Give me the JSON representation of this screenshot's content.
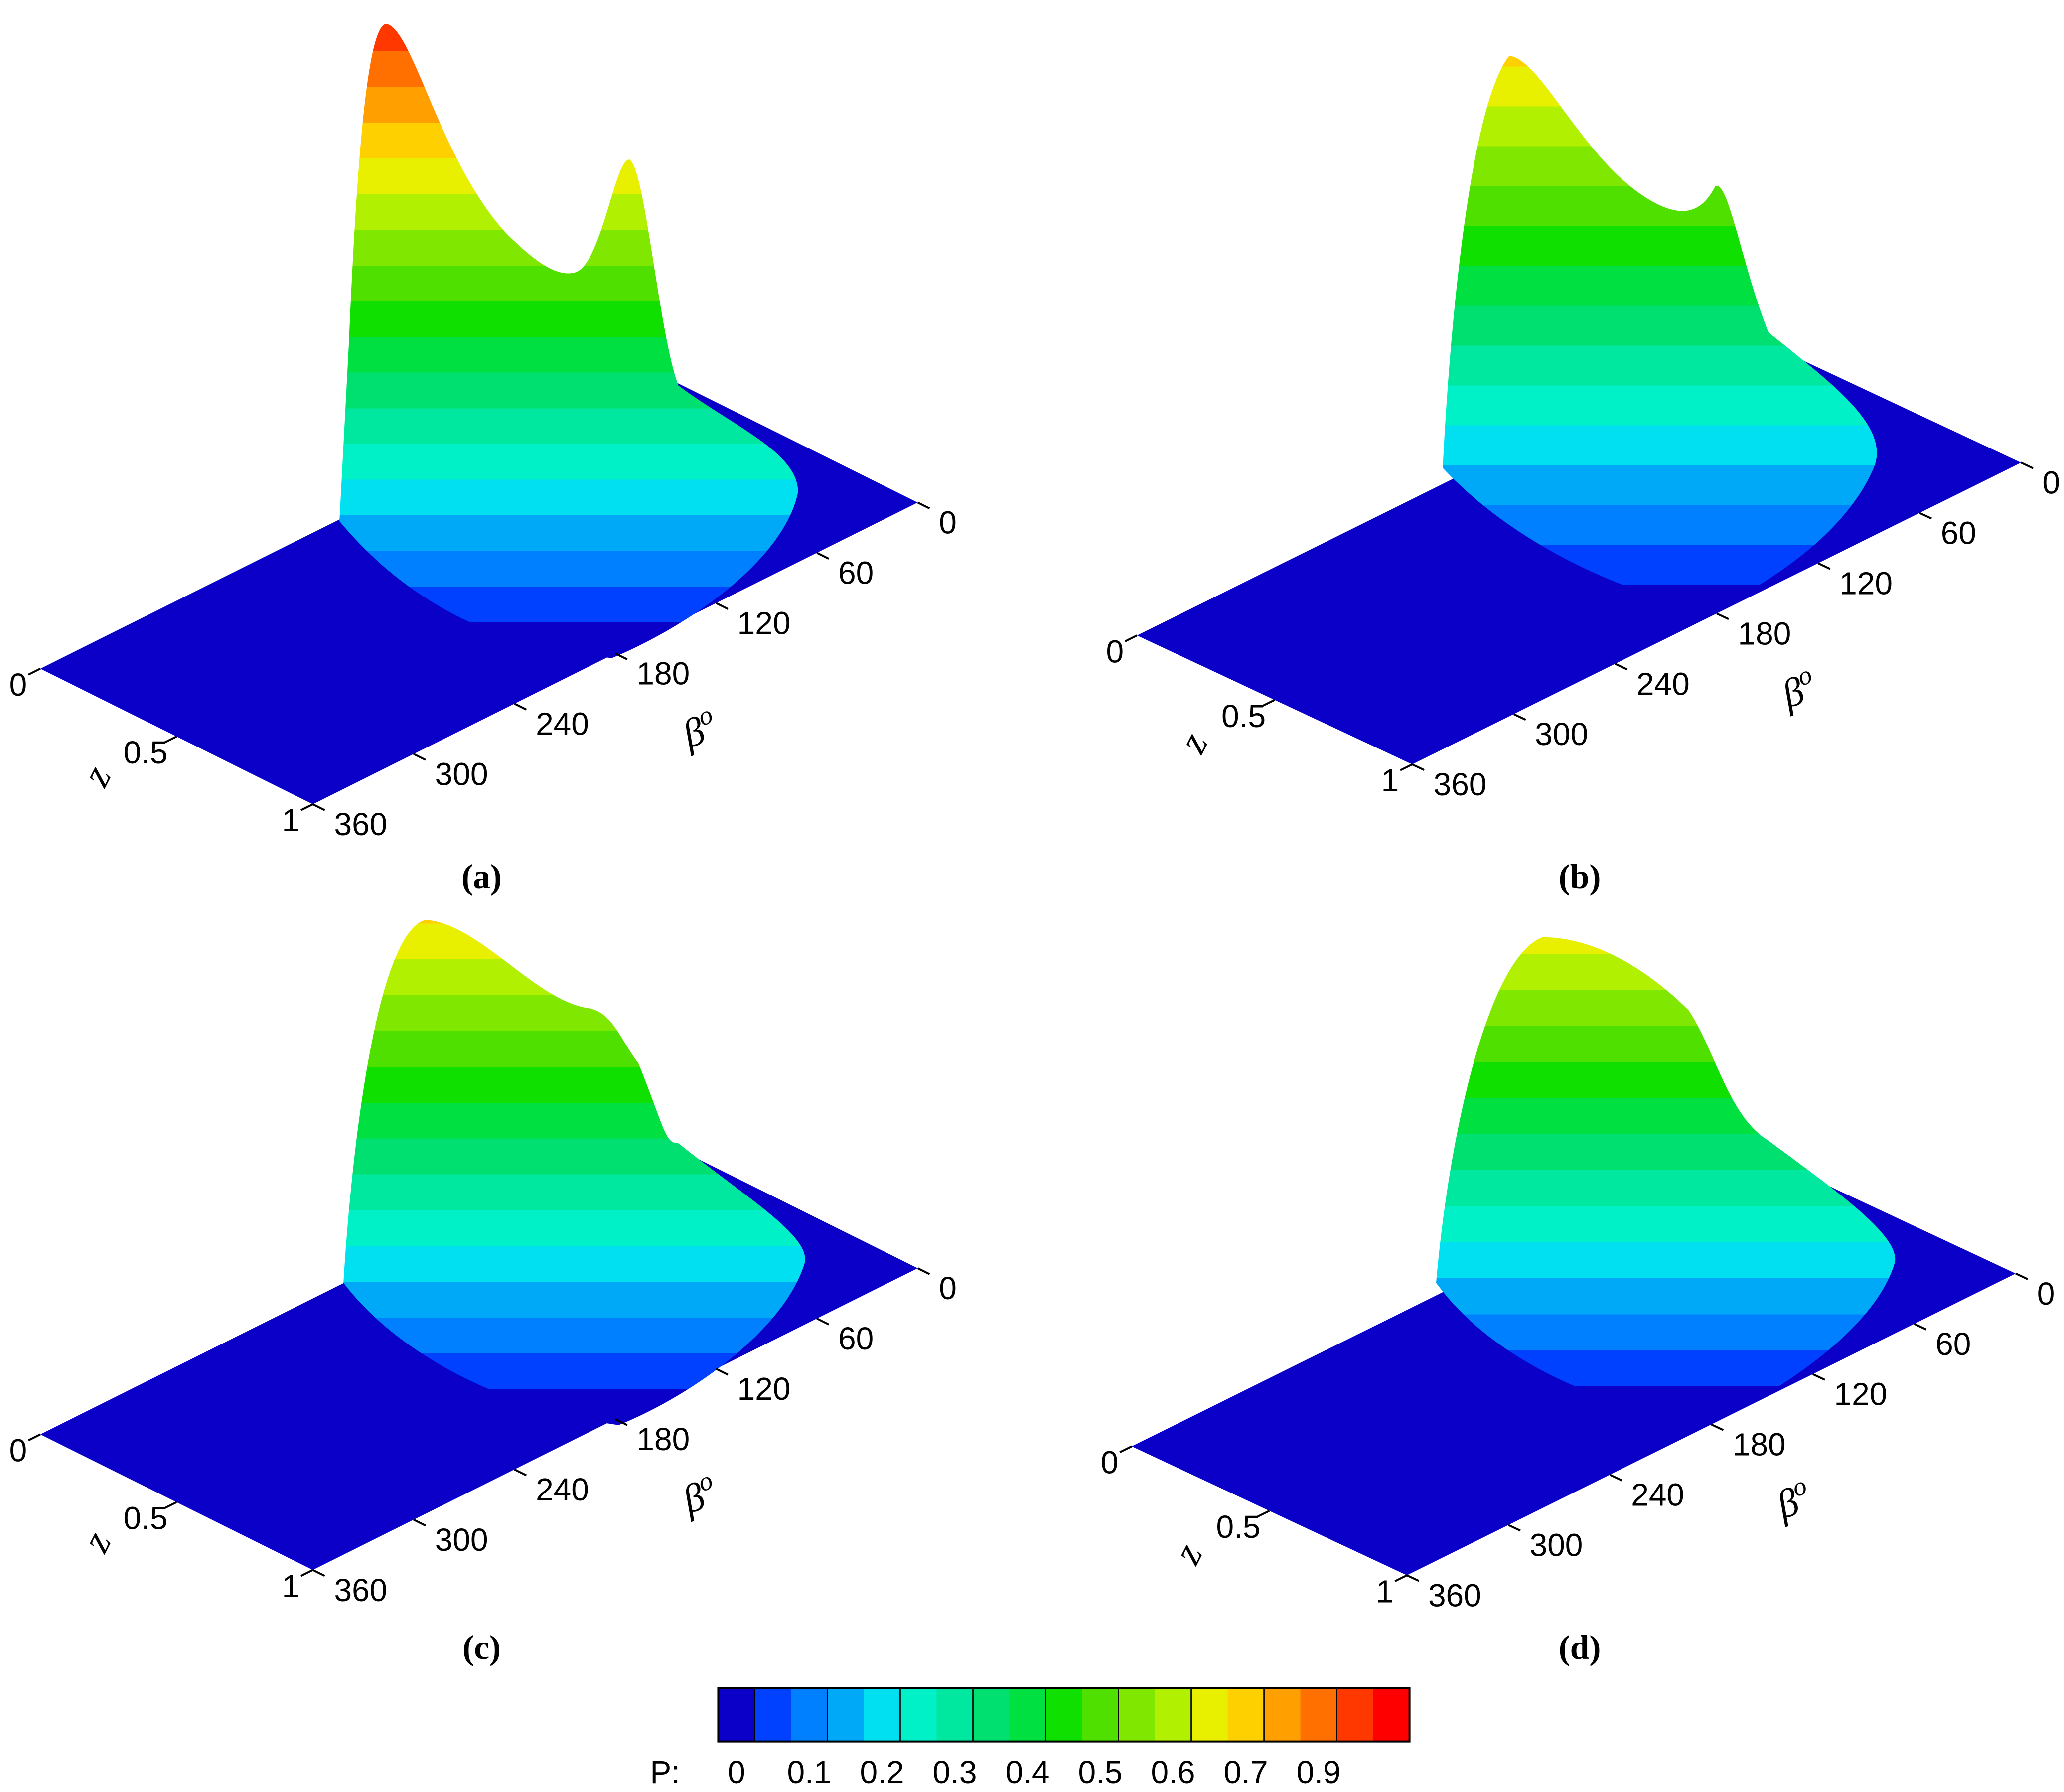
{
  "chart_data": [
    {
      "type": "surface3d",
      "caption": "(a)",
      "xlabel": "β",
      "xlabel_superscript": "o",
      "ylabel": "z",
      "xlim": [
        0,
        360
      ],
      "xticks": [
        0,
        60,
        120,
        180,
        240,
        300,
        360
      ],
      "ylim": [
        0,
        1
      ],
      "yticks": [
        0,
        0.5,
        1
      ]
    },
    {
      "type": "surface3d",
      "caption": "(b)",
      "xlabel": "β",
      "xlabel_superscript": "o",
      "ylabel": "z",
      "xlim": [
        0,
        360
      ],
      "xticks": [
        0,
        60,
        120,
        180,
        240,
        300,
        360
      ],
      "ylim": [
        0,
        1
      ],
      "yticks": [
        0,
        0.5,
        1
      ]
    },
    {
      "type": "surface3d",
      "caption": "(c)",
      "xlabel": "β",
      "xlabel_superscript": "o",
      "ylabel": "z",
      "xlim": [
        0,
        360
      ],
      "xticks": [
        0,
        60,
        120,
        180,
        240,
        300,
        360
      ],
      "ylim": [
        0,
        1
      ],
      "yticks": [
        0,
        0.5,
        1
      ]
    },
    {
      "type": "surface3d",
      "caption": "(d)",
      "xlabel": "β",
      "xlabel_superscript": "o",
      "ylabel": "z",
      "xlim": [
        0,
        360
      ],
      "xticks": [
        0,
        60,
        120,
        180,
        240,
        300,
        360
      ],
      "ylim": [
        0,
        1
      ],
      "yticks": [
        0,
        0.5,
        1
      ]
    }
  ],
  "colorbar": {
    "label": "P:",
    "colors": [
      "#0a00c8",
      "#0040ff",
      "#0080ff",
      "#00a8f8",
      "#00e0f0",
      "#00f0c8",
      "#00e8a0",
      "#00e070",
      "#00e040",
      "#10e000",
      "#50e000",
      "#80e800",
      "#b0f000",
      "#e8f000",
      "#ffd000",
      "#ffa000",
      "#ff7000",
      "#ff3800",
      "#ff0000"
    ],
    "tick_labels": [
      "0",
      "0.1",
      "0.2",
      "0.3",
      "0.4",
      "0.5",
      "0.6",
      "0.7",
      "0.9"
    ]
  }
}
